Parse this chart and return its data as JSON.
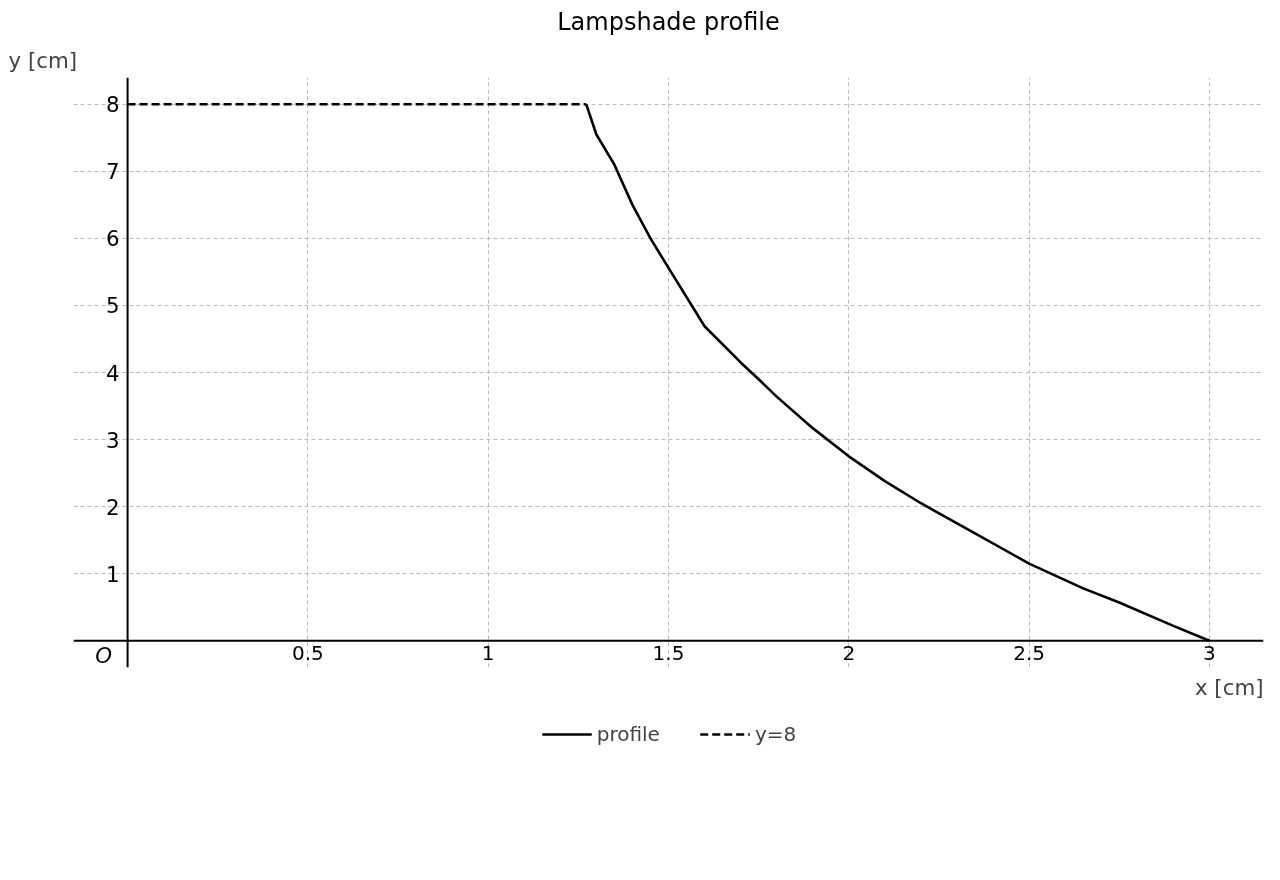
{
  "chart_data": {
    "type": "line",
    "title": "Lampshade profile",
    "xlabel": "x [cm]",
    "ylabel": "y [cm]",
    "series": [
      {
        "name": "profile",
        "color": "#000000",
        "line_style": "solid",
        "x": [
          1.272,
          1.3,
          1.35,
          1.4,
          1.45,
          1.5,
          1.6,
          1.7,
          1.75,
          1.8,
          1.9,
          2.0,
          2.1,
          2.2,
          2.35,
          2.5,
          2.65,
          2.75,
          2.9,
          3.0
        ],
        "values": [
          8.0,
          7.55,
          7.1,
          6.5,
          6.0,
          5.56,
          4.69,
          4.15,
          3.9,
          3.64,
          3.17,
          2.75,
          2.38,
          2.05,
          1.6,
          1.15,
          0.78,
          0.57,
          0.22,
          0.0
        ]
      },
      {
        "name": "y=8",
        "color": "#000000",
        "line_style": "dashed",
        "x": [
          0,
          1.272
        ],
        "values": [
          8,
          8
        ]
      }
    ],
    "annotations": [
      "O"
    ],
    "xlim": [
      -0.15,
      3.15
    ],
    "ylim": [
      -0.4,
      8.4
    ],
    "xticks": [
      0.5,
      1,
      1.5,
      2,
      2.5,
      3
    ],
    "yticks": [
      1,
      2,
      3,
      4,
      5,
      6,
      7,
      8
    ],
    "grid": true,
    "legend": "bottom",
    "marker": "none"
  }
}
